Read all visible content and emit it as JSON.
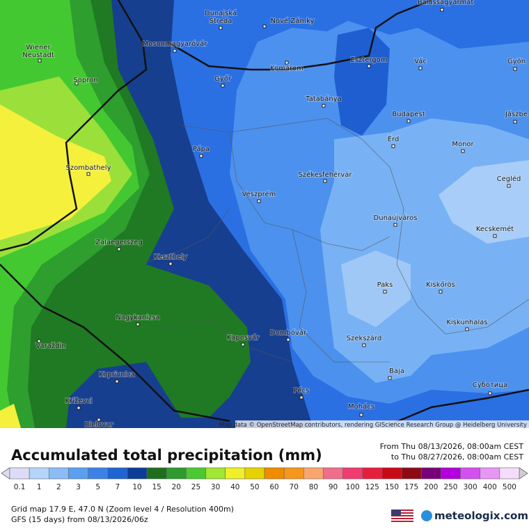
{
  "map": {
    "cities": [
      "Balassagyarmat",
      [
        "Dunajská",
        "Streda"
      ],
      "Nové Zámky",
      [
        "Wiener",
        "Neustadt"
      ],
      "Mosonmagyaróvár",
      "Komárom",
      "Esztergom",
      "Vác",
      "Gyön",
      "Sopron",
      "Győr",
      "Tatabánya",
      "Budapest",
      "Jászbe",
      "Érd",
      "Monor",
      "Pápa",
      "Szombathely",
      "Székesfehérvár",
      "Cegléd",
      "Veszprém",
      "Dunaújváros",
      "Kecskemét",
      "Zalaegerszeg",
      "Keszthely",
      "Paks",
      "Kiskőrös",
      "Nagykanizsa",
      "Kiskunhalas",
      "Kaposvár",
      "Dombóvár",
      "Szekszárd",
      "Varaždin",
      "Baja",
      "Koprivnica",
      "Суботица",
      "Pécs",
      "Križevci",
      "Mohács",
      "Bielovar"
    ],
    "attribution": "Map data © OpenStreetMap contributors, rendering GIScience Research Group @ Heidelberg University"
  },
  "footer": {
    "title": "Accumulated total precipitation (mm)",
    "from": "From Thu 08/13/2026, 08:00am CEST",
    "to": "to Thu 08/27/2026, 08:00am CEST",
    "grid": "Grid map 17.9 E, 47.0 N (Zoom level 4 / Resolution 400m)",
    "model": "GFS (15 days) from 08/13/2026/06z",
    "brand": "meteologix.com"
  },
  "legend": {
    "values": [
      0.1,
      1,
      2,
      3,
      5,
      7,
      10,
      15,
      20,
      25,
      30,
      40,
      50,
      60,
      70,
      80,
      90,
      100,
      125,
      150,
      175,
      200,
      250,
      300,
      400,
      500
    ],
    "colors": [
      "#dcdcf6",
      "#b4d4fa",
      "#8cbcf6",
      "#5aa0f0",
      "#3c82e6",
      "#1e64d2",
      "#0c3c96",
      "#1e6e1e",
      "#2d9b2d",
      "#4cc832",
      "#a0e632",
      "#f0f028",
      "#e6d200",
      "#f08c00",
      "#f5961e",
      "#faa56e",
      "#f06e8c",
      "#f03c6e",
      "#e61e3c",
      "#c80a14",
      "#8c0a14",
      "#780078",
      "#b400dc",
      "#d250f0",
      "#e696f5",
      "#f5dcfa"
    ],
    "low_color": "#dcdcf6",
    "high_color": "#cfcfcf"
  }
}
